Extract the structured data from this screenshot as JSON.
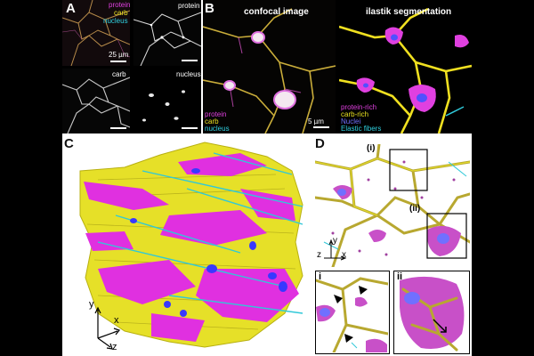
{
  "panels": {
    "A": {
      "label": "A",
      "merge_channels": [
        {
          "text": "protein",
          "color": "#e040e0"
        },
        {
          "text": "carb",
          "color": "#e8e020"
        },
        {
          "text": "nucleus",
          "color": "#30d0e0"
        }
      ],
      "protein_label": "protein",
      "carb_label": "carb",
      "nucleus_label": "nucleus",
      "scale_text": "25 µm"
    },
    "B": {
      "label": "B",
      "title_left": "confocal image",
      "title_right": "ilastik segmentation",
      "scale_text": "5 µm",
      "legend_left": [
        {
          "text": "protein",
          "color": "#e040e0"
        },
        {
          "text": "carb",
          "color": "#e8e020"
        },
        {
          "text": "nucleus",
          "color": "#30d0e0"
        }
      ],
      "legend_right": [
        {
          "text": "protein-rich",
          "color": "#e040e0"
        },
        {
          "text": "carb-rich",
          "color": "#e8e020"
        },
        {
          "text": "Nuclei",
          "color": "#6060ff"
        },
        {
          "text": "Elastic fibers",
          "color": "#30d0e0"
        }
      ]
    },
    "C": {
      "label": "C",
      "axes": {
        "y": "y",
        "x": "x",
        "z": "z"
      }
    },
    "D": {
      "label": "D",
      "roi_i": "(i)",
      "roi_ii": "(ii)",
      "axes": {
        "z": "z",
        "y": "y",
        "x": "x"
      },
      "inset_i": "i",
      "inset_ii": "ii"
    }
  },
  "colors": {
    "protein": "#e040e0",
    "carb": "#e8e020",
    "nucleus": "#4040ff",
    "elastic": "#30c8d8"
  }
}
